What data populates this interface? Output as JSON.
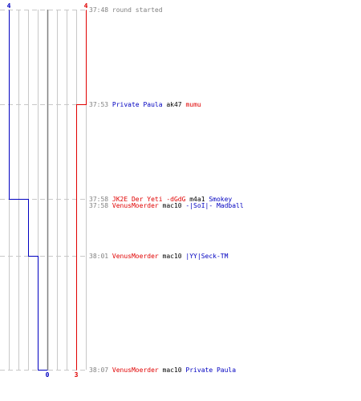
{
  "colors": {
    "blue_team": "#0000c0",
    "red_team": "#e00000",
    "time": "#808080",
    "neutral_text": "#000000",
    "event_gray": "#808080",
    "grid": "#c8c8c8",
    "center_line": "#808080"
  },
  "chart_data": {
    "type": "line",
    "title": "",
    "xlabel": "",
    "ylabel": "",
    "x_axis": {
      "min": -4,
      "max": 4,
      "center": 0,
      "ticks": [
        -4,
        -3,
        -2,
        -1,
        0,
        1,
        2,
        3,
        4
      ]
    },
    "time_axis": {
      "start": "37:48",
      "end": "38:07"
    },
    "grid": true,
    "series": [
      {
        "team": "blue",
        "start_count": 4,
        "end_count": 0,
        "steps": [
          {
            "time": "37:48",
            "count": 4
          },
          {
            "time": "37:58",
            "count": 2
          },
          {
            "time": "38:01",
            "count": 1
          },
          {
            "time": "38:07",
            "count": 0
          }
        ]
      },
      {
        "team": "red",
        "start_count": 4,
        "end_count": 3,
        "steps": [
          {
            "time": "37:48",
            "count": 4
          },
          {
            "time": "37:53",
            "count": 3
          }
        ]
      }
    ],
    "events": [
      {
        "time": "37:48",
        "row": 0,
        "parts": [
          {
            "text": "round started",
            "color": "event_gray"
          }
        ]
      },
      {
        "time": "37:53",
        "row": 0,
        "parts": [
          {
            "text": "Private Paula",
            "color": "blue_team"
          },
          {
            "text": " ak47 ",
            "color": "neutral_text"
          },
          {
            "text": "mumu",
            "color": "red_team"
          }
        ]
      },
      {
        "time": "37:58",
        "row": 0,
        "parts": [
          {
            "text": "JK2E Der Yeti -dGdG",
            "color": "red_team"
          },
          {
            "text": " m4a1 ",
            "color": "neutral_text"
          },
          {
            "text": "Smokey",
            "color": "blue_team"
          }
        ]
      },
      {
        "time": "37:58",
        "row": 1,
        "parts": [
          {
            "text": "VenusMoerder",
            "color": "red_team"
          },
          {
            "text": " mac10 ",
            "color": "neutral_text"
          },
          {
            "text": "-|SoI|- Madball",
            "color": "blue_team"
          }
        ]
      },
      {
        "time": "38:01",
        "row": 0,
        "parts": [
          {
            "text": "VenusMoerder",
            "color": "red_team"
          },
          {
            "text": " mac10 ",
            "color": "neutral_text"
          },
          {
            "text": "|YY|Seck-TM",
            "color": "blue_team"
          }
        ]
      },
      {
        "time": "38:07",
        "row": 0,
        "parts": [
          {
            "text": "VenusMoerder",
            "color": "red_team"
          },
          {
            "text": " mac10 ",
            "color": "neutral_text"
          },
          {
            "text": "Private Paula",
            "color": "blue_team"
          }
        ]
      }
    ]
  }
}
